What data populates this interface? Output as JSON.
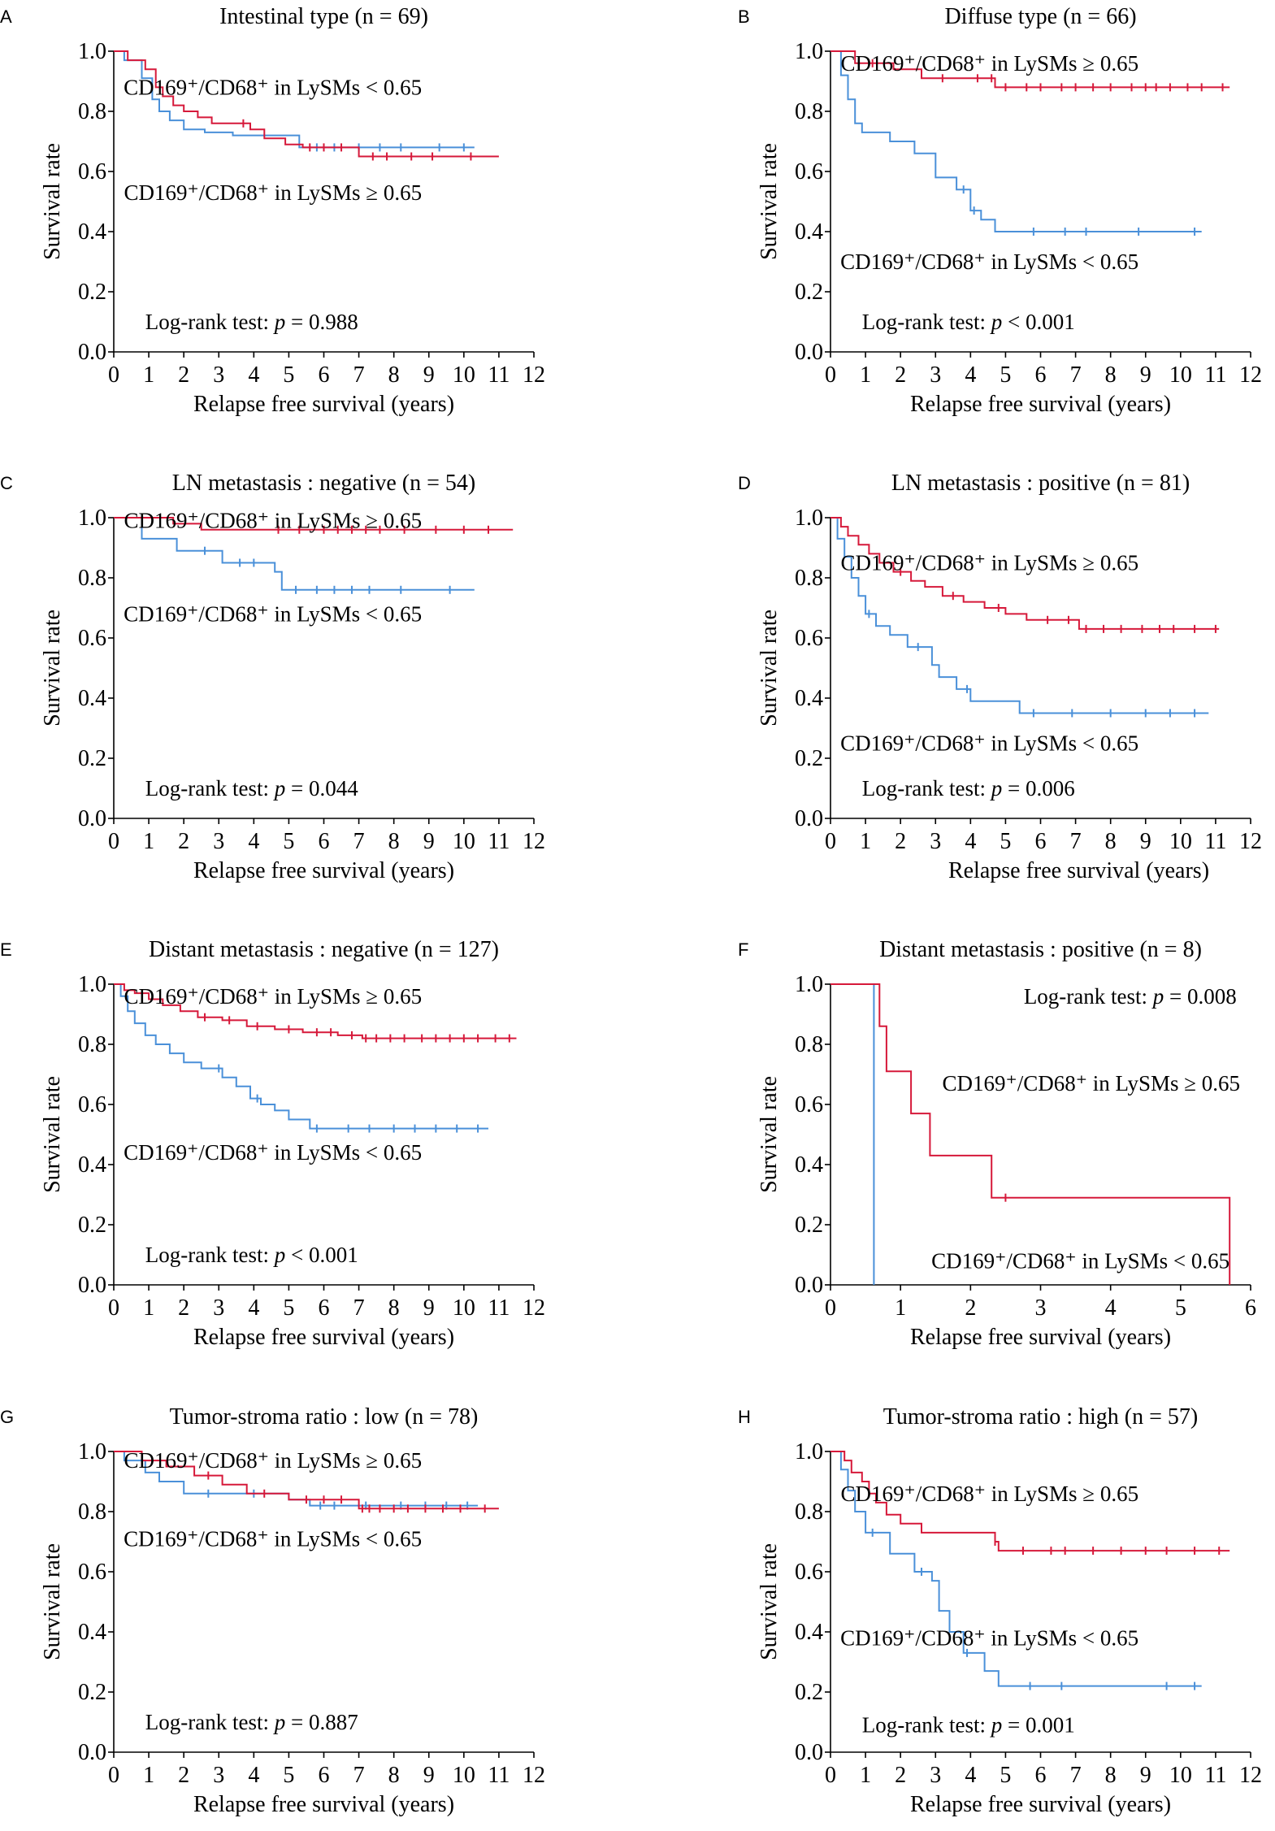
{
  "figure": {
    "colors": {
      "high": "#d6193a",
      "low": "#4a90d9",
      "axis": "#000000"
    },
    "common": {
      "xlabel": "Relapse free survival (years)",
      "ylabel": "Survival rate",
      "yticks": [
        "0.0",
        "0.2",
        "0.4",
        "0.6",
        "0.8",
        "1.0"
      ],
      "high_group": "CD169⁺/CD68⁺ in LySMs ≥ 0.65",
      "low_group": "CD169⁺/CD68⁺ in LySMs < 0.65"
    }
  },
  "chart_data": [
    {
      "type": "line",
      "panel": "A",
      "title": "Intestinal type (n = 69)",
      "xlabel": "Relapse free survival (years)",
      "ylabel": "Survival rate",
      "xlim": [
        0,
        12
      ],
      "ylim": [
        0,
        1
      ],
      "xticks": [
        0,
        1,
        2,
        3,
        4,
        5,
        6,
        7,
        8,
        9,
        10,
        11,
        12
      ],
      "pvalue_text": "Log-rank test: p = 0.988",
      "series": [
        {
          "name": "CD169⁺/CD68⁺ in LySMs < 0.65",
          "group": "low",
          "x": [
            0,
            0.3,
            0.8,
            1.1,
            1.3,
            1.6,
            2.0,
            2.6,
            3.4,
            5.3,
            7.1,
            10.3
          ],
          "y": [
            1.0,
            0.97,
            0.91,
            0.84,
            0.8,
            0.77,
            0.74,
            0.73,
            0.72,
            0.68,
            0.68,
            0.68
          ],
          "censor_x": [
            5.8,
            6.3,
            7.0,
            7.6,
            8.2,
            9.3,
            10.0
          ]
        },
        {
          "name": "CD169⁺/CD68⁺ in LySMs ≥ 0.65",
          "group": "high",
          "x": [
            0,
            0.4,
            0.9,
            1.2,
            1.4,
            1.7,
            2.0,
            2.4,
            2.8,
            3.9,
            4.3,
            4.9,
            5.4,
            7.0,
            7.3,
            11.0
          ],
          "y": [
            1.0,
            0.97,
            0.94,
            0.88,
            0.85,
            0.82,
            0.8,
            0.78,
            0.76,
            0.74,
            0.71,
            0.69,
            0.68,
            0.65,
            0.65,
            0.65
          ],
          "censor_x": [
            3.7,
            5.6,
            6.0,
            6.5,
            7.4,
            7.8,
            8.5,
            9.1,
            10.2
          ]
        }
      ],
      "annotations": [
        {
          "text": "CD169⁺/CD68⁺ in LySMs < 0.65",
          "x": 8.8,
          "y": 0.88
        },
        {
          "text": "CD169⁺/CD68⁺ in LySMs ≥ 0.65",
          "x": 8.8,
          "y": 0.53
        },
        {
          "text": "Log-rank test: p = 0.988",
          "x": 0.9,
          "y": 0.1
        }
      ]
    },
    {
      "type": "line",
      "panel": "B",
      "title": "Diffuse type (n = 66)",
      "xlabel": "Relapse free survival (years)",
      "ylabel": "Survival rate",
      "xlim": [
        0,
        12
      ],
      "ylim": [
        0,
        1
      ],
      "xticks": [
        0,
        1,
        2,
        3,
        4,
        5,
        6,
        7,
        8,
        9,
        10,
        11,
        12
      ],
      "pvalue_text": "Log-rank test: p < 0.001",
      "series": [
        {
          "name": "CD169⁺/CD68⁺ in LySMs ≥ 0.65",
          "group": "high",
          "x": [
            0,
            0.7,
            1.8,
            2.6,
            4.7,
            11.4
          ],
          "y": [
            1.0,
            0.96,
            0.94,
            0.91,
            0.88,
            0.88
          ],
          "censor_x": [
            1.2,
            3.2,
            4.2,
            4.6,
            5.0,
            5.6,
            6.0,
            6.6,
            7.0,
            7.5,
            8.0,
            8.6,
            9.0,
            9.3,
            9.7,
            10.2,
            10.6,
            11.2
          ]
        },
        {
          "name": "CD169⁺/CD68⁺ in LySMs < 0.65",
          "group": "low",
          "x": [
            0,
            0.3,
            0.5,
            0.7,
            0.9,
            1.7,
            2.4,
            3.0,
            3.6,
            4.0,
            4.3,
            4.7,
            10.6
          ],
          "y": [
            1.0,
            0.92,
            0.84,
            0.76,
            0.73,
            0.7,
            0.66,
            0.58,
            0.54,
            0.47,
            0.44,
            0.4,
            0.4
          ],
          "censor_x": [
            3.8,
            4.1,
            5.8,
            6.7,
            7.3,
            8.8,
            10.4
          ]
        }
      ],
      "annotations": [
        {
          "text": "CD169⁺/CD68⁺ in LySMs ≥ 0.65",
          "x": 8.8,
          "y": 0.96
        },
        {
          "text": "CD169⁺/CD68⁺ in LySMs < 0.65",
          "x": 8.8,
          "y": 0.3
        },
        {
          "text": "Log-rank test: p < 0.001",
          "x": 0.9,
          "y": 0.1
        }
      ]
    },
    {
      "type": "line",
      "panel": "C",
      "title": "LN metastasis : negative (n = 54)",
      "xlabel": "Relapse free survival (years)",
      "ylabel": "Survival rate",
      "xlim": [
        0,
        12
      ],
      "ylim": [
        0,
        1
      ],
      "xticks": [
        0,
        1,
        2,
        3,
        4,
        5,
        6,
        7,
        8,
        9,
        10,
        11,
        12
      ],
      "pvalue_text": "Log-rank test: p = 0.044",
      "series": [
        {
          "name": "CD169⁺/CD68⁺ in LySMs ≥ 0.65",
          "group": "high",
          "x": [
            0,
            1.7,
            2.5,
            11.4
          ],
          "y": [
            1.0,
            0.98,
            0.96,
            0.96
          ],
          "censor_x": [
            4.7,
            5.3,
            6.0,
            6.4,
            6.8,
            7.2,
            7.6,
            8.3,
            9.2,
            10.0,
            10.7
          ]
        },
        {
          "name": "CD169⁺/CD68⁺ in LySMs < 0.65",
          "group": "low",
          "x": [
            0,
            0.8,
            1.8,
            3.1,
            4.6,
            4.8,
            10.3
          ],
          "y": [
            1.0,
            0.93,
            0.89,
            0.85,
            0.82,
            0.76,
            0.76
          ],
          "censor_x": [
            2.6,
            3.6,
            4.0,
            5.2,
            5.8,
            6.3,
            6.8,
            7.3,
            8.2,
            9.6
          ]
        }
      ],
      "annotations": [
        {
          "text": "CD169⁺/CD68⁺ in LySMs ≥ 0.65",
          "x": 8.8,
          "y": 0.99
        },
        {
          "text": "CD169⁺/CD68⁺ in LySMs < 0.65",
          "x": 8.8,
          "y": 0.68
        },
        {
          "text": "Log-rank test: p = 0.044",
          "x": 0.9,
          "y": 0.1
        }
      ]
    },
    {
      "type": "line",
      "panel": "D",
      "title": "LN metastasis : positive (n = 81)",
      "xlabel": "Relapse free survival (years)",
      "ylabel": "Survival rate",
      "xlim": [
        0,
        12
      ],
      "ylim": [
        0,
        1
      ],
      "xticks": [
        0,
        1,
        2,
        3,
        4,
        5,
        6,
        7,
        8,
        9,
        10,
        11,
        12
      ],
      "pvalue_text": "Log-rank test: p = 0.006",
      "series": [
        {
          "name": "CD169⁺/CD68⁺ in LySMs ≥ 0.65",
          "group": "high",
          "x": [
            0,
            0.3,
            0.5,
            0.8,
            1.1,
            1.4,
            1.8,
            2.3,
            2.7,
            3.2,
            3.8,
            4.4,
            5.0,
            5.6,
            7.1,
            11.1
          ],
          "y": [
            1.0,
            0.97,
            0.94,
            0.91,
            0.88,
            0.85,
            0.82,
            0.79,
            0.77,
            0.74,
            0.72,
            0.7,
            0.68,
            0.66,
            0.63,
            0.63
          ],
          "censor_x": [
            2.0,
            3.5,
            4.8,
            6.2,
            6.8,
            7.3,
            7.8,
            8.3,
            8.9,
            9.4,
            9.8,
            10.4,
            11.0
          ]
        },
        {
          "name": "CD169⁺/CD68⁺ in LySMs < 0.65",
          "group": "low",
          "x": [
            0,
            0.2,
            0.4,
            0.6,
            0.8,
            1.0,
            1.3,
            1.7,
            2.2,
            2.9,
            3.1,
            3.6,
            4.0,
            5.4,
            10.8
          ],
          "y": [
            1.0,
            0.93,
            0.87,
            0.8,
            0.74,
            0.68,
            0.64,
            0.61,
            0.57,
            0.51,
            0.47,
            0.43,
            0.39,
            0.35,
            0.35
          ],
          "censor_x": [
            1.1,
            2.5,
            3.9,
            5.8,
            6.9,
            8.0,
            9.0,
            9.7,
            10.4
          ]
        }
      ],
      "annotations": [
        {
          "text": "CD169⁺/CD68⁺ in LySMs ≥ 0.65",
          "x": 8.8,
          "y": 0.85
        },
        {
          "text": "CD169⁺/CD68⁺ in LySMs < 0.65",
          "x": 8.8,
          "y": 0.25
        },
        {
          "text": "Log-rank test: p = 0.006",
          "x": 0.9,
          "y": 0.1
        }
      ]
    },
    {
      "type": "line",
      "panel": "E",
      "title": "Distant metastasis : negative (n = 127)",
      "xlabel": "Relapse free survival (years)",
      "ylabel": "Survival rate",
      "xlim": [
        0,
        12
      ],
      "ylim": [
        0,
        1
      ],
      "xticks": [
        0,
        1,
        2,
        3,
        4,
        5,
        6,
        7,
        8,
        9,
        10,
        11,
        12
      ],
      "pvalue_text": "Log-rank test: p < 0.001",
      "series": [
        {
          "name": "CD169⁺/CD68⁺ in LySMs ≥ 0.65",
          "group": "high",
          "x": [
            0,
            0.3,
            0.6,
            1.0,
            1.4,
            1.9,
            2.4,
            3.1,
            3.8,
            4.6,
            5.4,
            6.4,
            7.1,
            11.5
          ],
          "y": [
            1.0,
            0.98,
            0.97,
            0.95,
            0.93,
            0.91,
            0.89,
            0.88,
            0.86,
            0.85,
            0.84,
            0.83,
            0.82,
            0.82
          ],
          "censor_x": [
            2.6,
            3.3,
            4.1,
            5.0,
            5.8,
            6.2,
            6.8,
            7.2,
            7.5,
            7.9,
            8.3,
            8.8,
            9.2,
            9.6,
            10.0,
            10.4,
            10.9,
            11.3
          ]
        },
        {
          "name": "CD169⁺/CD68⁺ in LySMs < 0.65",
          "group": "low",
          "x": [
            0,
            0.2,
            0.4,
            0.6,
            0.9,
            1.2,
            1.6,
            2.0,
            2.5,
            3.1,
            3.5,
            3.9,
            4.2,
            4.6,
            5.0,
            5.6,
            10.7
          ],
          "y": [
            1.0,
            0.96,
            0.91,
            0.87,
            0.83,
            0.8,
            0.77,
            0.74,
            0.72,
            0.69,
            0.66,
            0.62,
            0.6,
            0.58,
            0.55,
            0.52,
            0.52
          ],
          "censor_x": [
            3.0,
            4.1,
            5.8,
            6.7,
            7.3,
            8.0,
            8.6,
            9.2,
            9.8,
            10.4
          ]
        }
      ],
      "annotations": [
        {
          "text": "CD169⁺/CD68⁺ in LySMs ≥ 0.65",
          "x": 8.8,
          "y": 0.96
        },
        {
          "text": "CD169⁺/CD68⁺ in LySMs < 0.65",
          "x": 8.8,
          "y": 0.44
        },
        {
          "text": "Log-rank test: p < 0.001",
          "x": 0.9,
          "y": 0.1
        }
      ]
    },
    {
      "type": "line",
      "panel": "F",
      "title": "Distant metastasis : positive (n = 8)",
      "xlabel": "Relapse free survival (years)",
      "ylabel": "Survival rate",
      "xlim": [
        0,
        6
      ],
      "ylim": [
        0,
        1
      ],
      "xticks": [
        0,
        1,
        2,
        3,
        4,
        5,
        6
      ],
      "pvalue_text": "Log-rank test: p = 0.008",
      "series": [
        {
          "name": "CD169⁺/CD68⁺ in LySMs ≥ 0.65",
          "group": "high",
          "x": [
            0,
            0.7,
            0.8,
            1.15,
            1.42,
            2.3,
            5.7,
            5.7
          ],
          "y": [
            1.0,
            0.86,
            0.71,
            0.57,
            0.43,
            0.29,
            0.29,
            0.0
          ],
          "censor_x": [
            2.5
          ]
        },
        {
          "name": "CD169⁺/CD68⁺ in LySMs < 0.65",
          "group": "low",
          "x": [
            0,
            0.62,
            0.62
          ],
          "y": [
            1.0,
            1.0,
            0.0
          ],
          "censor_x": []
        }
      ],
      "annotations": [
        {
          "text": "Log-rank test: p = 0.008",
          "x": 5.8,
          "y": 0.96
        },
        {
          "text": "CD169⁺/CD68⁺ in LySMs  ≥ 0.65",
          "x": 5.85,
          "y": 0.67
        },
        {
          "text": "CD169⁺/CD68⁺ in LySMs < 0.65",
          "x": 5.7,
          "y": 0.08
        }
      ]
    },
    {
      "type": "line",
      "panel": "G",
      "title": "Tumor-stroma ratio : low (n = 78)",
      "xlabel": "Relapse free survival (years)",
      "ylabel": "Survival rate",
      "xlim": [
        0,
        12
      ],
      "ylim": [
        0,
        1
      ],
      "xticks": [
        0,
        1,
        2,
        3,
        4,
        5,
        6,
        7,
        8,
        9,
        10,
        11,
        12
      ],
      "pvalue_text": "Log-rank test: p = 0.887",
      "series": [
        {
          "name": "CD169⁺/CD68⁺ in LySMs ≥ 0.65",
          "group": "high",
          "x": [
            0,
            0.8,
            1.5,
            2.3,
            3.1,
            3.8,
            5.0,
            7.0,
            11.0
          ],
          "y": [
            1.0,
            0.97,
            0.95,
            0.92,
            0.89,
            0.86,
            0.84,
            0.81,
            0.81
          ],
          "censor_x": [
            2.7,
            4.3,
            5.5,
            6.0,
            6.5,
            7.1,
            7.3,
            7.6,
            8.0,
            8.4,
            8.9,
            9.4,
            9.9,
            10.6
          ]
        },
        {
          "name": "CD169⁺/CD68⁺ in LySMs < 0.65",
          "group": "low",
          "x": [
            0,
            0.3,
            0.9,
            1.3,
            2.0,
            5.0,
            5.6,
            10.4
          ],
          "y": [
            1.0,
            0.97,
            0.93,
            0.9,
            0.86,
            0.84,
            0.82,
            0.82
          ],
          "censor_x": [
            2.7,
            4.0,
            5.9,
            6.3,
            7.2,
            8.2,
            8.9,
            9.5,
            10.1
          ]
        }
      ],
      "annotations": [
        {
          "text": "CD169⁺/CD68⁺ in LySMs ≥ 0.65",
          "x": 8.8,
          "y": 0.97
        },
        {
          "text": "CD169⁺/CD68⁺ in LySMs < 0.65",
          "x": 8.8,
          "y": 0.71
        },
        {
          "text": "Log-rank test: p = 0.887",
          "x": 0.9,
          "y": 0.1
        }
      ]
    },
    {
      "type": "line",
      "panel": "H",
      "title": "Tumor-stroma ratio : high (n = 57)",
      "xlabel": "Relapse free survival (years)",
      "ylabel": "Survival rate",
      "xlim": [
        0,
        12
      ],
      "ylim": [
        0,
        1
      ],
      "xticks": [
        0,
        1,
        2,
        3,
        4,
        5,
        6,
        7,
        8,
        9,
        10,
        11,
        12
      ],
      "pvalue_text": "Log-rank test: p = 0.001",
      "series": [
        {
          "name": "CD169⁺/CD68⁺ in LySMs ≥ 0.65",
          "group": "high",
          "x": [
            0,
            0.4,
            0.6,
            0.9,
            1.1,
            1.3,
            1.6,
            2.0,
            2.6,
            4.7,
            4.8,
            11.4
          ],
          "y": [
            1.0,
            0.97,
            0.93,
            0.9,
            0.86,
            0.83,
            0.79,
            0.76,
            0.73,
            0.7,
            0.67,
            0.67
          ],
          "censor_x": [
            4.7,
            5.5,
            6.3,
            6.7,
            7.5,
            8.3,
            9.0,
            9.6,
            10.4,
            11.1
          ]
        },
        {
          "name": "CD169⁺/CD68⁺ in LySMs < 0.65",
          "group": "low",
          "x": [
            0,
            0.3,
            0.5,
            0.7,
            1.0,
            1.7,
            2.4,
            2.9,
            3.1,
            3.4,
            3.8,
            4.4,
            4.8,
            10.6
          ],
          "y": [
            1.0,
            0.94,
            0.87,
            0.8,
            0.73,
            0.66,
            0.6,
            0.57,
            0.47,
            0.4,
            0.33,
            0.27,
            0.22,
            0.22
          ],
          "censor_x": [
            1.2,
            2.6,
            3.9,
            5.7,
            6.6,
            9.6,
            10.4
          ]
        }
      ],
      "annotations": [
        {
          "text": "CD169⁺/CD68⁺ in LySMs ≥ 0.65",
          "x": 8.8,
          "y": 0.86
        },
        {
          "text": "CD169⁺/CD68⁺ in LySMs < 0.65",
          "x": 8.8,
          "y": 0.38
        },
        {
          "text": "Log-rank test: p = 0.001",
          "x": 0.9,
          "y": 0.09
        }
      ]
    }
  ]
}
